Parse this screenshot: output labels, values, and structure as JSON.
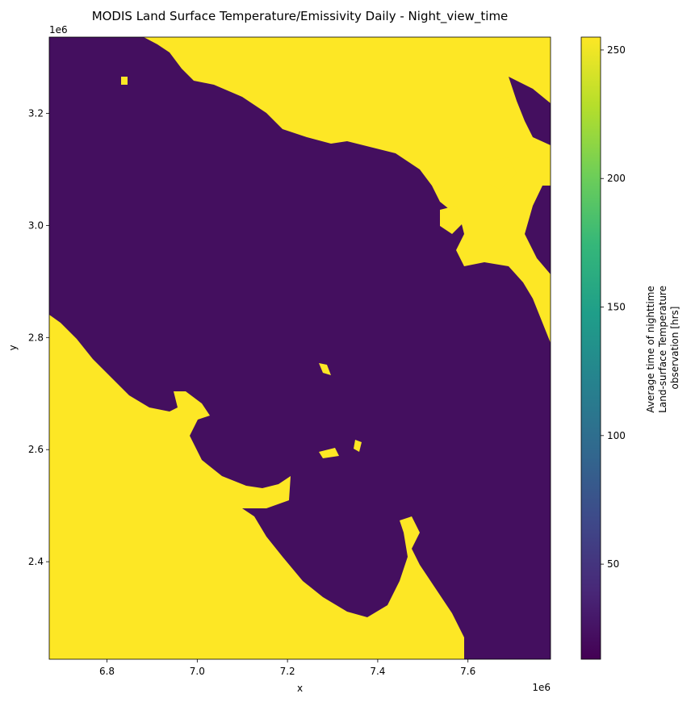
{
  "chart_data": {
    "type": "heatmap",
    "title": "MODIS Land Surface Temperature/Emissivity Daily - Night_view_time",
    "xlabel": "x",
    "ylabel": "y",
    "x_offset_label": "1e6",
    "y_offset_label": "1e6",
    "xlim": [
      6.672,
      7.783
    ],
    "ylim": [
      2.226,
      3.336
    ],
    "x_ticks": [
      6.8,
      7.0,
      7.2,
      7.4,
      7.6
    ],
    "x_tick_labels": [
      "6.8",
      "7.0",
      "7.2",
      "7.4",
      "7.6"
    ],
    "y_ticks": [
      2.4,
      2.6,
      2.8,
      3.0,
      3.2
    ],
    "y_tick_labels": [
      "2.4",
      "2.6",
      "2.8",
      "3.0",
      "3.2"
    ],
    "colorbar": {
      "label_lines": [
        "Average time of nighttime",
        "Land-surface Temperature",
        "observation [hrs]"
      ],
      "colormap": "viridis",
      "vmin": 13,
      "vmax": 255,
      "ticks": [
        50,
        100,
        150,
        200,
        250
      ],
      "tick_labels": [
        "50",
        "100",
        "150",
        "200",
        "250"
      ]
    },
    "background_value_color": "#440f5f",
    "fill_value_color": "#fde725",
    "colors": {
      "viridis": [
        "#440154",
        "#482878",
        "#3e4989",
        "#31688e",
        "#26828e",
        "#1f9e89",
        "#35b779",
        "#6ece58",
        "#b5de2b",
        "#fde725"
      ]
    }
  }
}
